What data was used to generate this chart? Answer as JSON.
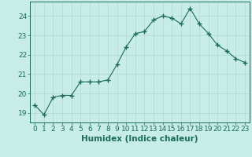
{
  "x": [
    0,
    1,
    2,
    3,
    4,
    5,
    6,
    7,
    8,
    9,
    10,
    11,
    12,
    13,
    14,
    15,
    16,
    17,
    18,
    19,
    20,
    21,
    22,
    23
  ],
  "y": [
    19.4,
    18.9,
    19.8,
    19.9,
    19.9,
    20.6,
    20.6,
    20.6,
    20.7,
    21.5,
    22.4,
    23.1,
    23.2,
    23.8,
    24.0,
    23.9,
    23.6,
    24.4,
    23.6,
    23.1,
    22.5,
    22.2,
    21.8,
    21.6
  ],
  "bg_color": "#c8ece8",
  "line_color": "#1a6b5a",
  "marker_color": "#1a6b5a",
  "grid_color": "#b0d8d0",
  "xlabel": "Humidex (Indice chaleur)",
  "xlim": [
    -0.5,
    23.5
  ],
  "ylim": [
    18.5,
    24.75
  ],
  "yticks": [
    19,
    20,
    21,
    22,
    23,
    24
  ],
  "xticks": [
    0,
    1,
    2,
    3,
    4,
    5,
    6,
    7,
    8,
    9,
    10,
    11,
    12,
    13,
    14,
    15,
    16,
    17,
    18,
    19,
    20,
    21,
    22,
    23
  ],
  "font_color": "#1a6b5a",
  "tick_label_fontsize": 6.5,
  "xlabel_fontsize": 7.5
}
